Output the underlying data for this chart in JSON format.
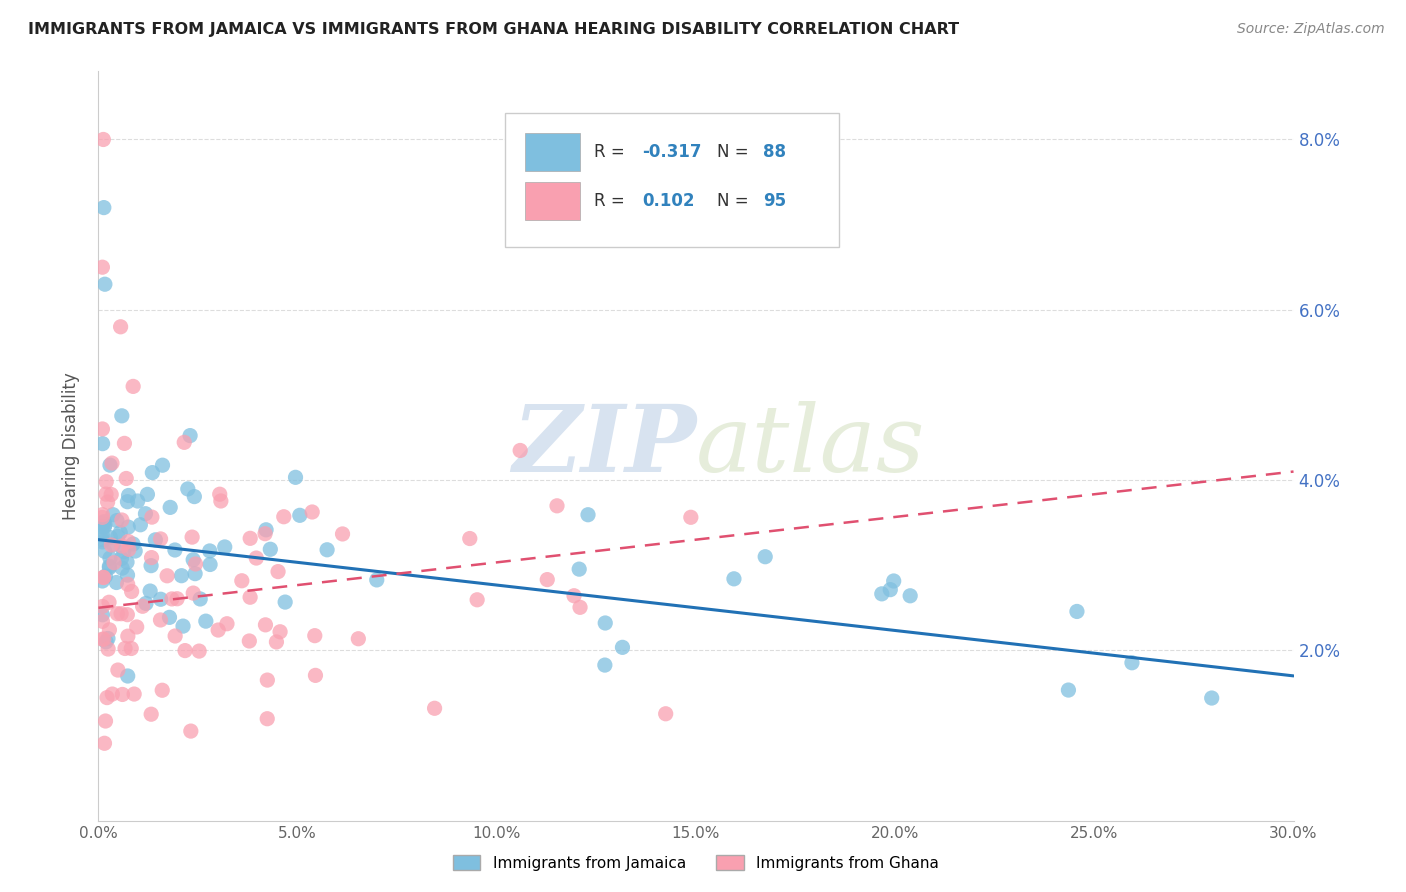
{
  "title": "IMMIGRANTS FROM JAMAICA VS IMMIGRANTS FROM GHANA HEARING DISABILITY CORRELATION CHART",
  "source": "Source: ZipAtlas.com",
  "ylabel": "Hearing Disability",
  "xlim": [
    0.0,
    0.3
  ],
  "ylim": [
    0.0,
    0.088
  ],
  "xticks": [
    0.0,
    0.05,
    0.1,
    0.15,
    0.2,
    0.25,
    0.3
  ],
  "ytick_vals": [
    0.02,
    0.04,
    0.06,
    0.08
  ],
  "ytick_labels_right": [
    "2.0%",
    "4.0%",
    "6.0%",
    "8.0%"
  ],
  "xtick_labels": [
    "0.0%",
    "5.0%",
    "10.0%",
    "15.0%",
    "20.0%",
    "25.0%",
    "30.0%"
  ],
  "jamaica_color": "#7fbfdf",
  "ghana_color": "#f9a0b0",
  "legend_R_color": "#3182bd",
  "jamaica_R": -0.317,
  "jamaica_N": 88,
  "ghana_R": 0.102,
  "ghana_N": 95,
  "jamaica_label": "Immigrants from Jamaica",
  "ghana_label": "Immigrants from Ghana",
  "watermark_zip": "ZIP",
  "watermark_atlas": "atlas",
  "grid_color": "#dddddd",
  "grid_style": "--"
}
